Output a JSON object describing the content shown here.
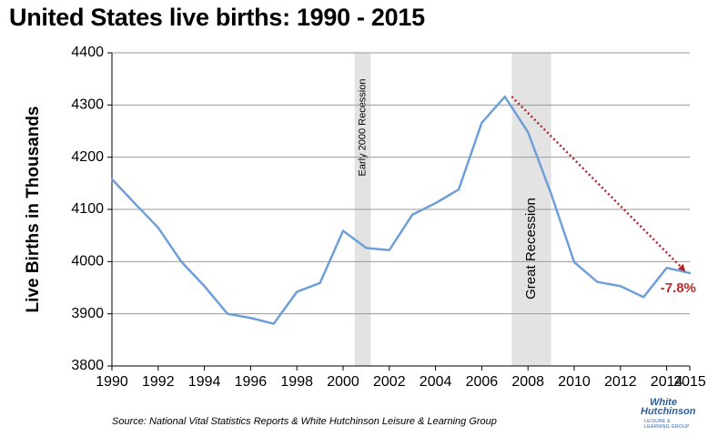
{
  "title": "United States live births: 1990 - 2015",
  "source": "Source: National Vital Statistics Reports & White Hutchinson Leisure & Learning Group",
  "logo": {
    "line1": "White",
    "line2": "Hutchinson",
    "line3": "LEISURE & LEARNING GROUP"
  },
  "colors": {
    "line": "#6f9fd8",
    "band": "#e3e3e3",
    "trend": "#b3262b",
    "change": "#c0282b"
  },
  "chart_data": {
    "type": "line",
    "title": "United States live births: 1990 - 2015",
    "ylabel": "Live Births in Thousands",
    "xlabel": "",
    "xlim": [
      1990,
      2015
    ],
    "ylim": [
      3800,
      4400
    ],
    "xticks": [
      "1990",
      "1992",
      "1994",
      "1996",
      "1998",
      "2000",
      "2002",
      "2004",
      "2006",
      "2008",
      "2010",
      "2012",
      "2014",
      "2015"
    ],
    "xtick_values": [
      1990,
      1992,
      1994,
      1996,
      1998,
      2000,
      2002,
      2004,
      2006,
      2008,
      2010,
      2012,
      2014,
      2015
    ],
    "yticks": [
      "3800",
      "3900",
      "4000",
      "4100",
      "4200",
      "4300",
      "4400"
    ],
    "ytick_values": [
      3800,
      3900,
      4000,
      4100,
      4200,
      4300,
      4400
    ],
    "grid": "horizontal",
    "series": [
      {
        "x": [
          1990,
          1991,
          1992,
          1993,
          1994,
          1995,
          1996,
          1997,
          1998,
          1999,
          2000,
          2001,
          2002,
          2003,
          2004,
          2005,
          2006,
          2007,
          2008,
          2009,
          2010,
          2011,
          2012,
          2013,
          2014,
          2015
        ],
        "values": [
          4158,
          4111,
          4065,
          4000,
          3953,
          3900,
          3892,
          3881,
          3942,
          3959,
          4059,
          4026,
          4022,
          4090,
          4112,
          4138,
          4266,
          4316,
          4248,
          4130,
          3999,
          3961,
          3953,
          3932,
          3988,
          3978
        ]
      }
    ],
    "shaded_bands": [
      {
        "label": "Early 2000 Recession",
        "x_start": 2000.5,
        "x_end": 2001.2
      },
      {
        "label": "Great Recession",
        "x_start": 2007.3,
        "x_end": 2009.0
      }
    ],
    "annotations": [
      {
        "type": "arrow",
        "from": [
          2007.3,
          4316
        ],
        "to": [
          2015,
          3978
        ]
      },
      {
        "type": "text",
        "text": "-7.8%",
        "x": 2014.5,
        "y": 3948
      }
    ]
  }
}
